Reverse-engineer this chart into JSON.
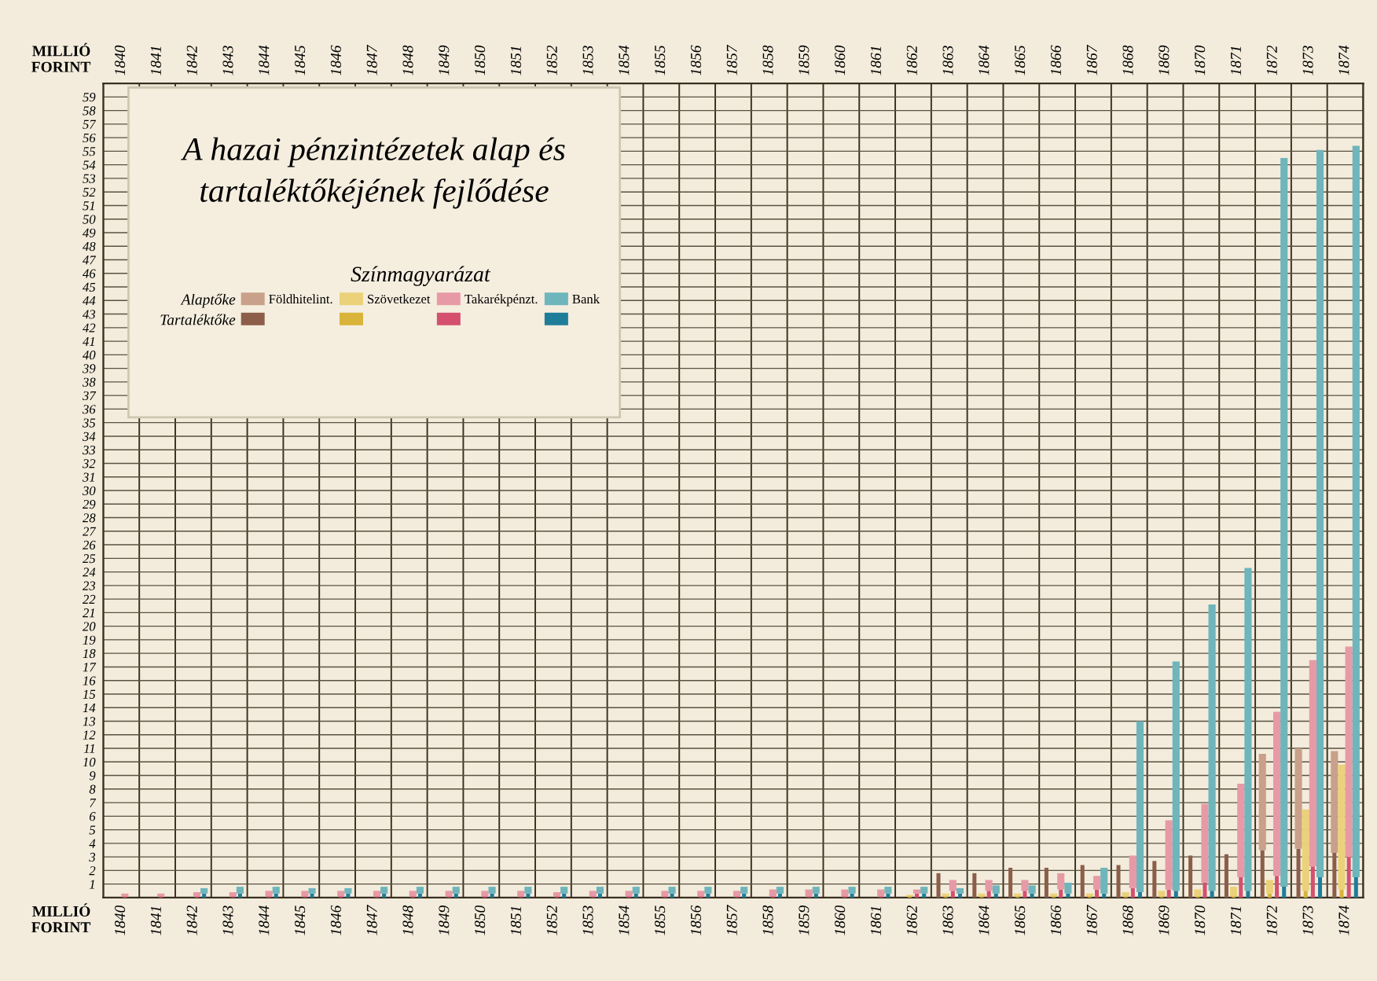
{
  "chart_data": {
    "type": "bar",
    "title": "A hazai pénzintézetek alap és tartaléktőkéjének fejlődése",
    "legend_title": "Színmagyarázat",
    "ylabel": "MILLIÓ FORINT",
    "categories": [
      "1840",
      "1841",
      "1842",
      "1843",
      "1844",
      "1845",
      "1846",
      "1847",
      "1848",
      "1849",
      "1850",
      "1851",
      "1852",
      "1853",
      "1854",
      "1855",
      "1856",
      "1857",
      "1858",
      "1859",
      "1860",
      "1861",
      "1862",
      "1863",
      "1864",
      "1865",
      "1866",
      "1867",
      "1868",
      "1869",
      "1870",
      "1871",
      "1872",
      "1873",
      "1874"
    ],
    "series": [
      {
        "color": "#8c5e4a",
        "values": [
          null,
          null,
          null,
          null,
          null,
          null,
          null,
          null,
          null,
          null,
          null,
          null,
          null,
          null,
          null,
          null,
          null,
          null,
          null,
          null,
          null,
          null,
          null,
          1.8,
          1.8,
          2.2,
          2.2,
          2.4,
          2.4,
          2.7,
          3.1,
          3.2,
          3.5,
          3.6,
          3.3
        ]
      },
      {
        "name": "Földhitelint.",
        "color": "#c9a08a",
        "values": [
          null,
          null,
          null,
          null,
          null,
          null,
          null,
          null,
          null,
          null,
          null,
          null,
          null,
          null,
          null,
          null,
          null,
          null,
          null,
          null,
          null,
          null,
          null,
          null,
          null,
          null,
          null,
          null,
          null,
          null,
          null,
          null,
          7.1,
          7.4,
          7.5
        ],
        "base": [
          null,
          null,
          null,
          null,
          null,
          null,
          null,
          null,
          null,
          null,
          null,
          null,
          null,
          null,
          null,
          null,
          null,
          null,
          null,
          null,
          null,
          null,
          null,
          null,
          null,
          null,
          null,
          null,
          null,
          null,
          null,
          null,
          3.5,
          3.6,
          3.3
        ]
      },
      {
        "color": "#d9b43a",
        "values": [
          null,
          null,
          null,
          null,
          null,
          null,
          null,
          null,
          null,
          null,
          null,
          null,
          null,
          null,
          null,
          null,
          null,
          null,
          null,
          null,
          null,
          null,
          0.1,
          0.1,
          0.1,
          0.1,
          0.1,
          0.1,
          0.1,
          0.1,
          0.1,
          0.1,
          0.3,
          0.5,
          0.6
        ]
      },
      {
        "name": "Szövetkezet",
        "color": "#ebd27a",
        "values": [
          null,
          null,
          null,
          null,
          null,
          null,
          null,
          null,
          null,
          null,
          null,
          null,
          null,
          null,
          null,
          null,
          null,
          null,
          null,
          null,
          null,
          null,
          0.1,
          0.2,
          0.2,
          0.2,
          0.2,
          0.2,
          0.3,
          0.4,
          0.5,
          0.7,
          1.0,
          6.0,
          9.2
        ],
        "base": [
          null,
          null,
          null,
          null,
          null,
          null,
          null,
          null,
          null,
          null,
          null,
          null,
          null,
          null,
          null,
          null,
          null,
          null,
          null,
          null,
          null,
          null,
          0.1,
          0.1,
          0.1,
          0.1,
          0.1,
          0.1,
          0.1,
          0.1,
          0.1,
          0.1,
          0.3,
          0.5,
          0.6
        ]
      },
      {
        "color": "#d4506e",
        "values": [
          0.1,
          0.1,
          0.1,
          0.1,
          0.1,
          0.1,
          0.1,
          0.1,
          0.1,
          0.1,
          0.1,
          0.1,
          0.1,
          0.1,
          0.1,
          0.1,
          0.1,
          0.1,
          0.1,
          0.1,
          0.1,
          0.1,
          0.3,
          0.5,
          0.5,
          0.5,
          0.6,
          0.6,
          0.7,
          0.6,
          1.1,
          1.5,
          1.6,
          2.3,
          3.0
        ]
      },
      {
        "name": "Takarékpénzt.",
        "color": "#e79aa6",
        "values": [
          0.2,
          0.2,
          0.3,
          0.3,
          0.4,
          0.4,
          0.4,
          0.4,
          0.4,
          0.4,
          0.4,
          0.4,
          0.3,
          0.4,
          0.4,
          0.4,
          0.4,
          0.4,
          0.5,
          0.5,
          0.5,
          0.5,
          0.3,
          0.8,
          0.8,
          0.8,
          1.2,
          1.0,
          2.4,
          5.1,
          5.8,
          6.9,
          12.1,
          15.2,
          15.5
        ],
        "base": [
          0.1,
          0.1,
          0.1,
          0.1,
          0.1,
          0.1,
          0.1,
          0.1,
          0.1,
          0.1,
          0.1,
          0.1,
          0.1,
          0.1,
          0.1,
          0.1,
          0.1,
          0.1,
          0.1,
          0.1,
          0.1,
          0.1,
          0.3,
          0.5,
          0.5,
          0.5,
          0.6,
          0.6,
          0.7,
          0.6,
          1.1,
          1.5,
          1.6,
          2.3,
          3.0
        ]
      },
      {
        "color": "#1f7d9a",
        "values": [
          null,
          null,
          0.3,
          0.3,
          0.3,
          0.3,
          0.3,
          0.3,
          0.3,
          0.3,
          0.3,
          0.3,
          0.3,
          0.3,
          0.3,
          0.3,
          0.3,
          0.3,
          0.3,
          0.3,
          0.3,
          0.3,
          0.3,
          0.3,
          0.3,
          0.3,
          0.3,
          0.3,
          0.4,
          0.5,
          0.5,
          0.5,
          0.8,
          1.5,
          1.5
        ]
      },
      {
        "name": "Bank",
        "color": "#6fb5bc",
        "values": [
          null,
          null,
          0.4,
          0.5,
          0.5,
          0.4,
          0.4,
          0.5,
          0.5,
          0.5,
          0.5,
          0.5,
          0.5,
          0.5,
          0.5,
          0.5,
          0.5,
          0.5,
          0.5,
          0.5,
          0.5,
          0.5,
          0.5,
          0.4,
          0.6,
          0.6,
          0.8,
          1.9,
          12.6,
          16.9,
          21.1,
          23.8,
          53.7,
          53.6,
          53.9
        ],
        "base": [
          null,
          null,
          0.3,
          0.3,
          0.3,
          0.3,
          0.3,
          0.3,
          0.3,
          0.3,
          0.3,
          0.3,
          0.3,
          0.3,
          0.3,
          0.3,
          0.3,
          0.3,
          0.3,
          0.3,
          0.3,
          0.3,
          0.3,
          0.3,
          0.3,
          0.3,
          0.3,
          0.3,
          0.4,
          0.5,
          0.5,
          0.5,
          0.8,
          1.5,
          1.5
        ]
      }
    ],
    "annotations": [
      "Alaptőke",
      "Tartaléktőke"
    ],
    "ylim": [
      0,
      60
    ],
    "yticks": [
      1,
      2,
      3,
      4,
      5,
      6,
      7,
      8,
      9,
      10,
      11,
      12,
      13,
      14,
      15,
      16,
      17,
      18,
      19,
      20,
      21,
      22,
      23,
      24,
      25,
      26,
      27,
      28,
      29,
      30,
      31,
      32,
      33,
      34,
      35,
      36,
      37,
      38,
      39,
      40,
      41,
      42,
      43,
      44,
      45,
      46,
      47,
      48,
      49,
      50,
      51,
      52,
      53,
      54,
      55,
      56,
      57,
      58,
      59
    ],
    "grid": true,
    "legend": "top left"
  }
}
